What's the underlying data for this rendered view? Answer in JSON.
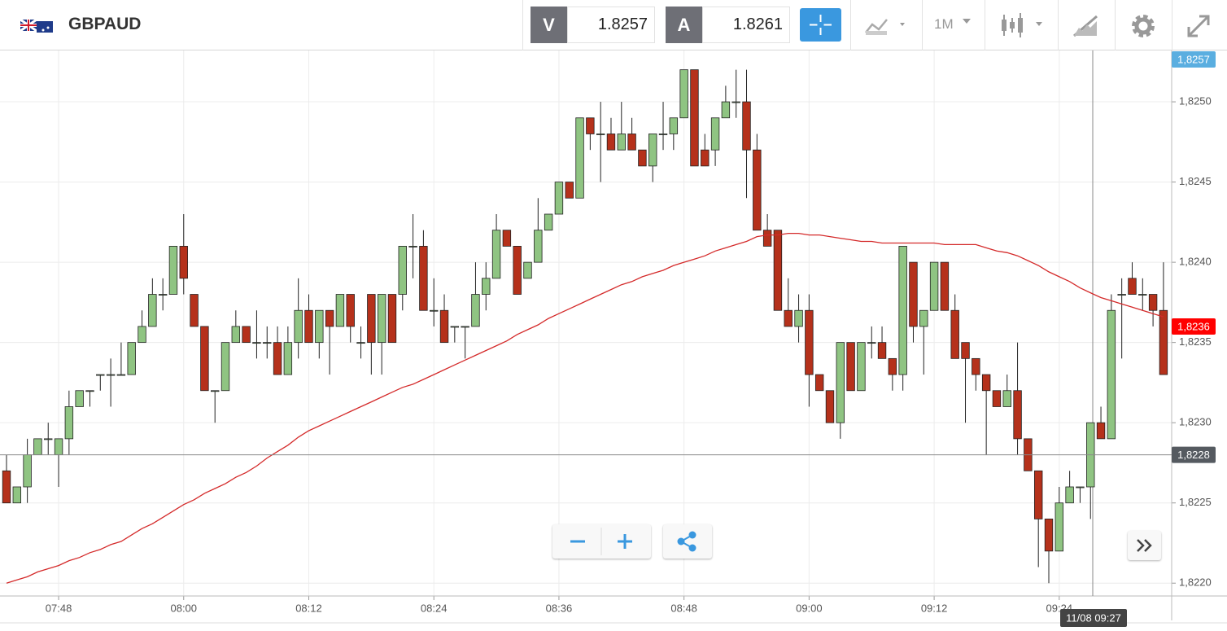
{
  "toolbar": {
    "symbol": "GBPAUD",
    "bid_label": "V",
    "bid": "1.8257",
    "ask_label": "A",
    "ask": "1.8261",
    "timeframe": "1M"
  },
  "chart_data": {
    "type": "candlestick",
    "categories": [
      null,
      null,
      null,
      null,
      null,
      "07:48",
      null,
      null,
      null,
      null,
      null,
      null,
      null,
      null,
      null,
      null,
      null,
      "08:00",
      null,
      null,
      null,
      null,
      null,
      null,
      null,
      null,
      null,
      null,
      null,
      "08:12",
      null,
      null,
      null,
      null,
      null,
      null,
      null,
      null,
      null,
      null,
      null,
      "08:24",
      null,
      null,
      null,
      null,
      null,
      null,
      null,
      null,
      null,
      null,
      null,
      "08:36",
      null,
      null,
      null,
      null,
      null,
      null,
      null,
      null,
      null,
      null,
      null,
      "08:48",
      null,
      null,
      null,
      null,
      null,
      null,
      null,
      null,
      null,
      null,
      null,
      "09:00",
      null,
      null,
      null,
      null,
      null,
      null,
      null,
      null,
      null,
      null,
      null,
      "09:12",
      null,
      null,
      null,
      null,
      null,
      null,
      null,
      null,
      null,
      null,
      null,
      "09:24",
      null,
      null,
      null,
      null,
      null,
      null,
      null,
      null,
      null,
      null
    ],
    "open": [
      1.8227,
      1.8225,
      1.8226,
      1.8228,
      1.8229,
      1.8228,
      1.8229,
      1.8231,
      1.8232,
      1.8233,
      1.8233,
      1.8233,
      1.8233,
      1.8235,
      1.8236,
      1.8238,
      1.8238,
      1.8241,
      1.8238,
      1.8236,
      1.8232,
      1.8232,
      1.8235,
      1.8236,
      1.8235,
      1.8235,
      1.8235,
      1.8233,
      1.8235,
      1.8237,
      1.8235,
      1.8237,
      1.8236,
      1.8238,
      1.8235,
      1.8238,
      1.8235,
      1.8238,
      1.8238,
      1.8241,
      1.8241,
      1.8237,
      1.8237,
      1.8236,
      1.8236,
      1.8236,
      1.8238,
      1.8239,
      1.8242,
      1.8241,
      1.8239,
      1.824,
      1.8242,
      1.8243,
      1.8245,
      1.8244,
      1.8249,
      1.8248,
      1.8248,
      1.8247,
      1.8248,
      1.8247,
      1.8246,
      1.8248,
      1.8248,
      1.8249,
      1.8252,
      1.8247,
      1.8247,
      1.8249,
      1.825,
      1.825,
      1.8247,
      1.8242,
      1.8242,
      1.8237,
      1.8236,
      1.8237,
      1.8233,
      1.8232,
      1.823,
      1.8235,
      1.8232,
      1.8235,
      1.8235,
      1.8234,
      1.8233,
      1.824,
      1.8236,
      1.8237,
      1.824,
      1.8237,
      1.8235,
      1.8234,
      1.8233,
      1.8232,
      1.8231,
      1.8232,
      1.8229,
      1.8227,
      1.8224,
      1.8222,
      1.8225,
      1.8226,
      1.8226,
      1.823,
      1.8229,
      1.8238,
      1.8239,
      1.8238,
      1.8238,
      1.8237
    ],
    "high": [
      1.8228,
      1.8226,
      1.8229,
      1.8229,
      1.823,
      1.8229,
      1.8232,
      1.8232,
      1.8232,
      1.8233,
      1.8234,
      1.8235,
      1.8235,
      1.8237,
      1.8239,
      1.8239,
      1.8241,
      1.8243,
      1.8238,
      1.8236,
      1.8232,
      1.8235,
      1.8237,
      1.8236,
      1.8237,
      1.8236,
      1.8236,
      1.8236,
      1.8239,
      1.8238,
      1.8237,
      1.8237,
      1.8238,
      1.8238,
      1.8236,
      1.8238,
      1.8238,
      1.8238,
      1.8241,
      1.8243,
      1.8242,
      1.8239,
      1.8238,
      1.8236,
      1.8236,
      1.824,
      1.824,
      1.8243,
      1.8242,
      1.8241,
      1.824,
      1.8244,
      1.8243,
      1.8245,
      1.8245,
      1.8249,
      1.8249,
      1.825,
      1.8249,
      1.825,
      1.8249,
      1.8247,
      1.8248,
      1.825,
      1.8249,
      1.8252,
      1.8252,
      1.8248,
      1.8249,
      1.8251,
      1.8252,
      1.8252,
      1.8248,
      1.8243,
      1.8242,
      1.8239,
      1.8238,
      1.8238,
      1.8233,
      1.8232,
      1.8235,
      1.8235,
      1.8235,
      1.8236,
      1.8236,
      1.8234,
      1.8241,
      1.824,
      1.8237,
      1.824,
      1.824,
      1.8238,
      1.8235,
      1.8234,
      1.8233,
      1.8232,
      1.8233,
      1.8235,
      1.8229,
      1.8227,
      1.8224,
      1.8226,
      1.8227,
      1.8226,
      1.823,
      1.8231,
      1.8238,
      1.8239,
      1.824,
      1.8239,
      1.8238,
      1.824
    ],
    "low": [
      1.8225,
      1.8225,
      1.8225,
      1.8228,
      1.8228,
      1.8226,
      1.8228,
      1.8231,
      1.8231,
      1.8232,
      1.8231,
      1.8233,
      1.8233,
      1.8235,
      1.8236,
      1.8237,
      1.8238,
      1.8238,
      1.8236,
      1.8232,
      1.823,
      1.8232,
      1.8235,
      1.8235,
      1.8234,
      1.8234,
      1.8233,
      1.8233,
      1.8234,
      1.8235,
      1.8234,
      1.8233,
      1.8236,
      1.8235,
      1.8234,
      1.8233,
      1.8233,
      1.8235,
      1.8237,
      1.8239,
      1.8237,
      1.8236,
      1.8235,
      1.8235,
      1.8234,
      1.8236,
      1.8237,
      1.8239,
      1.8241,
      1.8238,
      1.8239,
      1.824,
      1.8242,
      1.8243,
      1.8244,
      1.8244,
      1.8247,
      1.8245,
      1.8247,
      1.8247,
      1.8247,
      1.8246,
      1.8245,
      1.8247,
      1.8247,
      1.8249,
      1.8246,
      1.8246,
      1.8246,
      1.8249,
      1.8249,
      1.8244,
      1.8242,
      1.8241,
      1.8237,
      1.8236,
      1.8235,
      1.8231,
      1.8232,
      1.823,
      1.8229,
      1.8232,
      1.8232,
      1.8234,
      1.8234,
      1.8232,
      1.8232,
      1.8235,
      1.8233,
      1.8237,
      1.8237,
      1.8234,
      1.823,
      1.8232,
      1.8228,
      1.8231,
      1.8231,
      1.8228,
      1.8227,
      1.8221,
      1.822,
      1.8222,
      1.8225,
      1.8225,
      1.8224,
      1.8229,
      1.8229,
      1.8234,
      1.8238,
      1.8237,
      1.8236,
      1.8233
    ],
    "close": [
      1.8225,
      1.8226,
      1.8228,
      1.8229,
      1.8229,
      1.8229,
      1.8231,
      1.8232,
      1.8232,
      1.8233,
      1.8233,
      1.8233,
      1.8235,
      1.8236,
      1.8238,
      1.8238,
      1.8241,
      1.8239,
      1.8236,
      1.8232,
      1.8232,
      1.8235,
      1.8236,
      1.8235,
      1.8235,
      1.8235,
      1.8233,
      1.8235,
      1.8237,
      1.8235,
      1.8237,
      1.8236,
      1.8238,
      1.8236,
      1.8235,
      1.8235,
      1.8238,
      1.8235,
      1.8241,
      1.8241,
      1.8237,
      1.8237,
      1.8235,
      1.8236,
      1.8236,
      1.8238,
      1.8239,
      1.8242,
      1.8241,
      1.8238,
      1.824,
      1.8242,
      1.8243,
      1.8245,
      1.8244,
      1.8249,
      1.8248,
      1.8248,
      1.8247,
      1.8248,
      1.8247,
      1.8246,
      1.8248,
      1.8248,
      1.8249,
      1.8252,
      1.8246,
      1.8246,
      1.8249,
      1.825,
      1.825,
      1.8247,
      1.8242,
      1.8241,
      1.8237,
      1.8236,
      1.8237,
      1.8233,
      1.8232,
      1.823,
      1.8235,
      1.8232,
      1.8235,
      1.8235,
      1.8234,
      1.8233,
      1.8241,
      1.8236,
      1.8237,
      1.824,
      1.8237,
      1.8234,
      1.8234,
      1.8233,
      1.8232,
      1.8231,
      1.8232,
      1.8229,
      1.8227,
      1.8224,
      1.8222,
      1.8225,
      1.8226,
      1.8226,
      1.823,
      1.8229,
      1.8237,
      1.8238,
      1.8238,
      1.8238,
      1.8237,
      1.8233
    ],
    "up_color": "#8fc482",
    "down_color": "#b5311b",
    "moving_average": {
      "color": "#d42a2a",
      "values": [
        1.822,
        1.82202,
        1.82204,
        1.82207,
        1.82209,
        1.82211,
        1.82214,
        1.82216,
        1.82219,
        1.82221,
        1.82224,
        1.82226,
        1.8223,
        1.82234,
        1.82237,
        1.82241,
        1.82245,
        1.82249,
        1.82252,
        1.82256,
        1.82259,
        1.82262,
        1.82266,
        1.82269,
        1.82273,
        1.82278,
        1.82282,
        1.82286,
        1.82291,
        1.82295,
        1.82298,
        1.82301,
        1.82304,
        1.82307,
        1.8231,
        1.82313,
        1.82316,
        1.82319,
        1.82322,
        1.82324,
        1.82327,
        1.8233,
        1.82333,
        1.82336,
        1.82339,
        1.82342,
        1.82345,
        1.82348,
        1.82351,
        1.82355,
        1.82358,
        1.82361,
        1.82365,
        1.82368,
        1.82371,
        1.82374,
        1.82377,
        1.8238,
        1.82383,
        1.82386,
        1.82388,
        1.82391,
        1.82393,
        1.82395,
        1.82398,
        1.824,
        1.82402,
        1.82404,
        1.82407,
        1.82409,
        1.82411,
        1.82413,
        1.82416,
        1.82417,
        1.82417,
        1.82418,
        1.82418,
        1.82417,
        1.82417,
        1.82416,
        1.82415,
        1.82414,
        1.82413,
        1.82413,
        1.82412,
        1.82412,
        1.82412,
        1.82412,
        1.82412,
        1.82412,
        1.82411,
        1.82411,
        1.82411,
        1.82411,
        1.82409,
        1.82407,
        1.82406,
        1.82404,
        1.82401,
        1.82398,
        1.82394,
        1.82391,
        1.82388,
        1.82384,
        1.82381,
        1.82378,
        1.82376,
        1.82374,
        1.82372,
        1.8237,
        1.82368,
        1.82366
      ]
    },
    "ylim": [
      1.82192,
      1.82532
    ],
    "yticks": [
      {
        "value": 1.822,
        "label": "1,8220"
      },
      {
        "value": 1.8225,
        "label": "1,8225"
      },
      {
        "value": 1.823,
        "label": "1,8230"
      },
      {
        "value": 1.8235,
        "label": "1,8235"
      },
      {
        "value": 1.824,
        "label": "1,8240"
      },
      {
        "value": 1.8245,
        "label": "1,8245"
      },
      {
        "value": 1.825,
        "label": "1,8250"
      }
    ],
    "grid": true,
    "price_markers": [
      {
        "value": 1.8257,
        "label": "1,8257",
        "color": "#5aaee0"
      },
      {
        "value": 1.8236,
        "label": "1,8236",
        "color": "#ff0000"
      },
      {
        "value": 1.8228,
        "label": "1,8228",
        "color": "#555a60"
      }
    ],
    "crosshair_time": "11/08 09:27"
  }
}
